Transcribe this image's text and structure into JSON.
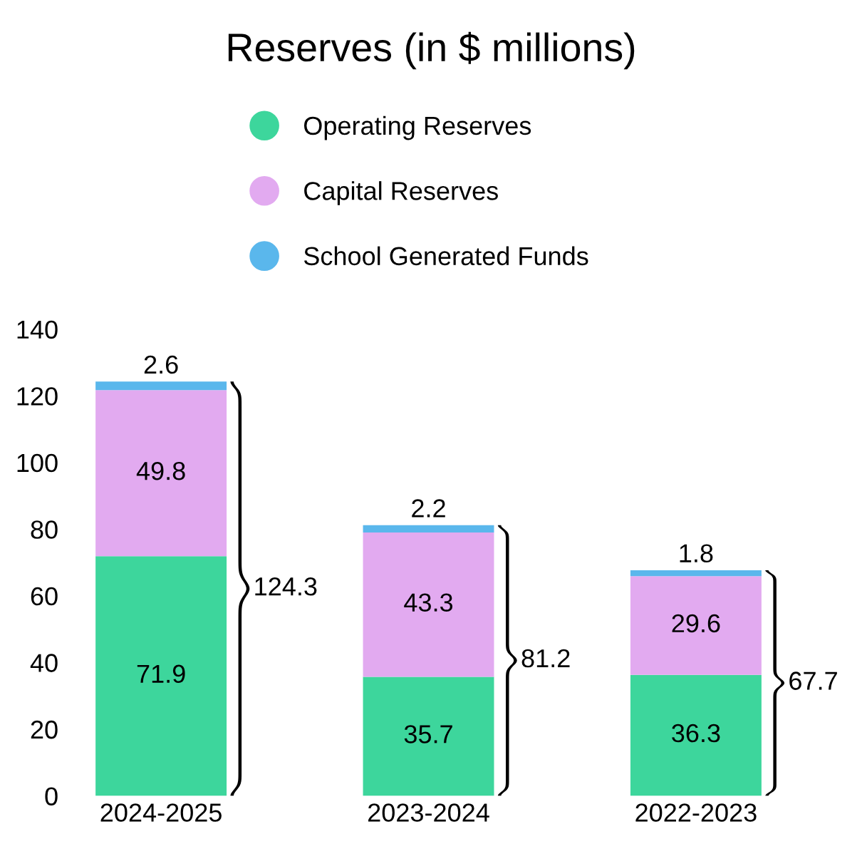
{
  "chart_data": {
    "type": "bar",
    "title": "Reserves (in $ millions)",
    "categories": [
      "2024-2025",
      "2023-2024",
      "2022-2023"
    ],
    "stacked": true,
    "series": [
      {
        "name": "Operating Reserves",
        "color": "#3dd69c",
        "values": [
          71.9,
          35.7,
          36.3
        ]
      },
      {
        "name": "Capital Reserves",
        "color": "#e2aaf0",
        "values": [
          49.8,
          43.3,
          29.6
        ]
      },
      {
        "name": "School Generated Funds",
        "color": "#5ab7ec",
        "values": [
          2.6,
          2.2,
          1.8
        ]
      }
    ],
    "data_labels": true,
    "totals": [
      "124.3",
      "81.2",
      "67.7"
    ],
    "ylim": [
      0,
      140
    ],
    "yticks": [
      0,
      20,
      40,
      60,
      80,
      100,
      120,
      140
    ],
    "grid": false,
    "legend": "top"
  }
}
